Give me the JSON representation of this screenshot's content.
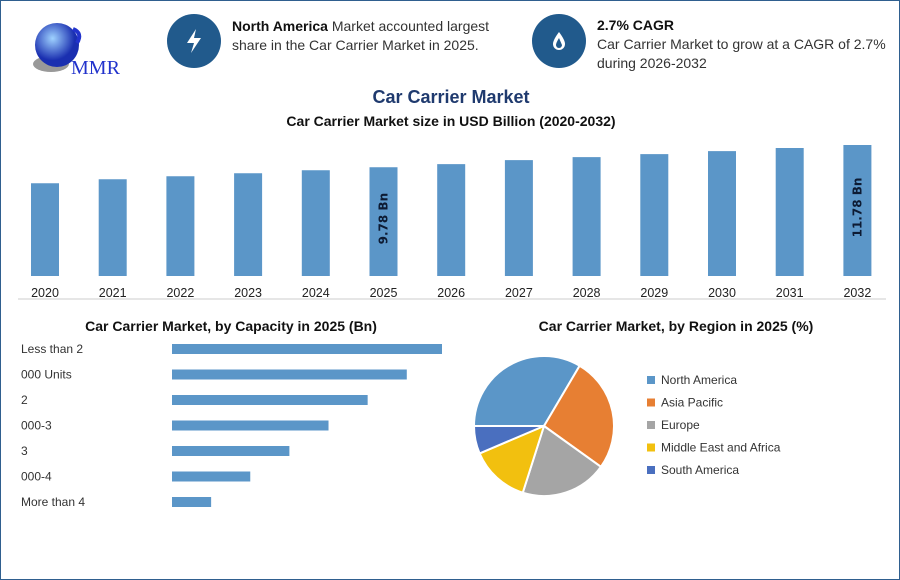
{
  "header": {
    "logo_text": "MMR",
    "info1": {
      "icon": "lightning-icon",
      "bold": "North America",
      "text": " Market accounted largest share in the Car Carrier Market in 2025."
    },
    "info2": {
      "icon": "flame-drop-icon",
      "bold": "2.7% CAGR",
      "text": "Car Carrier Market to grow at a CAGR of 2.7% during 2026-2032"
    }
  },
  "title": "Car Carrier Market",
  "colors": {
    "bar": "#5b96c8",
    "frame": "#2f5f8f",
    "icon_circle": "#215a8c",
    "title": "#1f3a6e"
  },
  "chart_data": [
    {
      "type": "bar",
      "title": "Car Carrier Market size in USD Billion (2020-2032)",
      "categories": [
        "2020",
        "2021",
        "2022",
        "2023",
        "2024",
        "2025",
        "2026",
        "2027",
        "2028",
        "2029",
        "2030",
        "2031",
        "2032"
      ],
      "values": [
        8.34,
        8.7,
        8.97,
        9.24,
        9.51,
        9.78,
        10.06,
        10.42,
        10.69,
        10.96,
        11.23,
        11.51,
        11.78
      ],
      "data_labels": {
        "2025": "9.78 Bn",
        "2032": "11.78 Bn"
      },
      "ylim": [
        0,
        11.78
      ],
      "grid": false
    },
    {
      "type": "bar",
      "orientation": "horizontal",
      "title": "Car Carrier Market, by Capacity in 2025 (Bn)",
      "categories": [
        "Less than 2",
        "000 Units",
        "2",
        "000-3",
        "3",
        "000-4",
        "More than 4"
      ],
      "values": [
        6.9,
        6.0,
        5.0,
        4.0,
        3.0,
        2.0,
        1.0
      ],
      "grid": false
    },
    {
      "type": "pie",
      "title": "Car Carrier Market, by Region in 2025 (%)",
      "labels": [
        "North America",
        "Asia Pacific",
        "Europe",
        "Middle East and Africa",
        "South America"
      ],
      "values": [
        33.5,
        26.4,
        20.0,
        13.7,
        6.4
      ],
      "colors": [
        "#5b96c8",
        "#e77f33",
        "#a5a5a5",
        "#f2c00f",
        "#4a6fbf"
      ],
      "legend": "right"
    }
  ]
}
